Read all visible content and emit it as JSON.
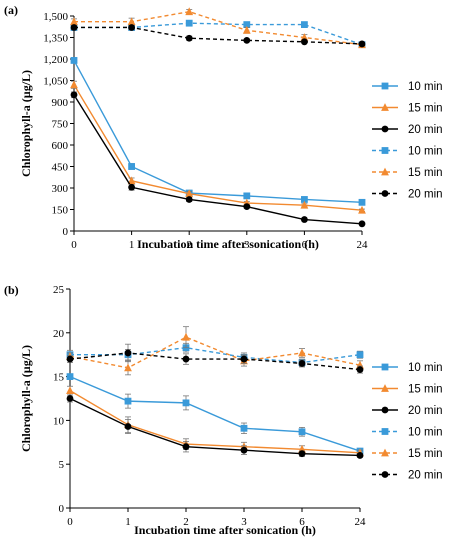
{
  "chart_data": [
    {
      "type": "line",
      "panel_label": "(a)",
      "xlabel": "Incubation time after sonication (h)",
      "ylabel": "Chlorophyll-a (µg/L)",
      "categories": [
        "0",
        "1",
        "2",
        "3",
        "6",
        "24"
      ],
      "ylim": [
        0,
        1500
      ],
      "y_ticks": [
        0,
        150,
        300,
        450,
        600,
        750,
        900,
        1050,
        1200,
        1350,
        1500
      ],
      "y_tick_labels": [
        "0",
        "150",
        "300",
        "450",
        "600",
        "750",
        "900",
        "1,050",
        "1,200",
        "1,350",
        "1,500"
      ],
      "grid": false,
      "legend_position": "right",
      "series": [
        {
          "name": "10 min",
          "color": "#3a9ad9",
          "marker": "square",
          "dashed": false,
          "values": [
            1190,
            450,
            265,
            245,
            220,
            200
          ],
          "errors": [
            0,
            20,
            15,
            10,
            10,
            8
          ]
        },
        {
          "name": "15 min",
          "color": "#f28a30",
          "marker": "triangle",
          "dashed": false,
          "values": [
            1020,
            350,
            260,
            195,
            180,
            145
          ],
          "errors": [
            25,
            20,
            15,
            10,
            10,
            8
          ]
        },
        {
          "name": "20 min",
          "color": "#000000",
          "marker": "circle",
          "dashed": false,
          "values": [
            950,
            305,
            220,
            170,
            80,
            50
          ],
          "errors": [
            20,
            20,
            15,
            10,
            8,
            5
          ]
        },
        {
          "name": "10 min",
          "color": "#3a9ad9",
          "marker": "square",
          "dashed": true,
          "values": [
            1420,
            1420,
            1450,
            1440,
            1440,
            1300
          ],
          "errors": [
            20,
            20,
            15,
            15,
            15,
            15
          ]
        },
        {
          "name": "15 min",
          "color": "#f28a30",
          "marker": "triangle",
          "dashed": true,
          "values": [
            1460,
            1460,
            1530,
            1400,
            1350,
            1300
          ],
          "errors": [
            20,
            25,
            15,
            20,
            20,
            15
          ]
        },
        {
          "name": "20 min",
          "color": "#000000",
          "marker": "circle",
          "dashed": true,
          "values": [
            1420,
            1420,
            1345,
            1330,
            1320,
            1305
          ],
          "errors": [
            15,
            15,
            15,
            10,
            10,
            10
          ]
        }
      ]
    },
    {
      "type": "line",
      "panel_label": "(b)",
      "xlabel": "Incubation time after sonication (h)",
      "ylabel": "Chlorophyll-a (µg/L)",
      "categories": [
        "0",
        "1",
        "2",
        "3",
        "6",
        "24"
      ],
      "ylim": [
        0,
        25
      ],
      "y_ticks": [
        0,
        5,
        10,
        15,
        20,
        25
      ],
      "y_tick_labels": [
        "0",
        "5",
        "10",
        "15",
        "20",
        "25"
      ],
      "grid": false,
      "legend_position": "right",
      "series": [
        {
          "name": "10 min",
          "color": "#3a9ad9",
          "marker": "square",
          "dashed": false,
          "values": [
            15.0,
            12.2,
            12.0,
            9.1,
            8.7,
            6.5
          ],
          "errors": [
            0,
            0.8,
            0.8,
            0.6,
            0.5,
            0.3
          ]
        },
        {
          "name": "15 min",
          "color": "#f28a30",
          "marker": "triangle",
          "dashed": false,
          "values": [
            13.4,
            9.5,
            7.3,
            7.0,
            6.7,
            6.3
          ],
          "errors": [
            0.5,
            0.9,
            0.6,
            0.5,
            0.4,
            0.3
          ]
        },
        {
          "name": "20 min",
          "color": "#000000",
          "marker": "circle",
          "dashed": false,
          "values": [
            12.5,
            9.3,
            7.0,
            6.6,
            6.2,
            6.0
          ],
          "errors": [
            0.4,
            0.8,
            0.6,
            0.5,
            0.3,
            0.2
          ]
        },
        {
          "name": "10 min",
          "color": "#3a9ad9",
          "marker": "square",
          "dashed": true,
          "values": [
            17.5,
            17.5,
            18.3,
            17.2,
            16.6,
            17.5
          ],
          "errors": [
            0.5,
            0.6,
            0.5,
            0.5,
            0.4,
            0.4
          ]
        },
        {
          "name": "15 min",
          "color": "#f28a30",
          "marker": "triangle",
          "dashed": true,
          "values": [
            17.3,
            16.0,
            19.5,
            16.8,
            17.7,
            16.3
          ],
          "errors": [
            0.4,
            0.8,
            1.2,
            0.6,
            0.5,
            0.5
          ]
        },
        {
          "name": "20 min",
          "color": "#000000",
          "marker": "circle",
          "dashed": true,
          "values": [
            17.0,
            17.7,
            17.0,
            17.0,
            16.5,
            15.8
          ],
          "errors": [
            0.4,
            1.0,
            0.6,
            0.5,
            0.4,
            0.4
          ]
        }
      ]
    }
  ]
}
